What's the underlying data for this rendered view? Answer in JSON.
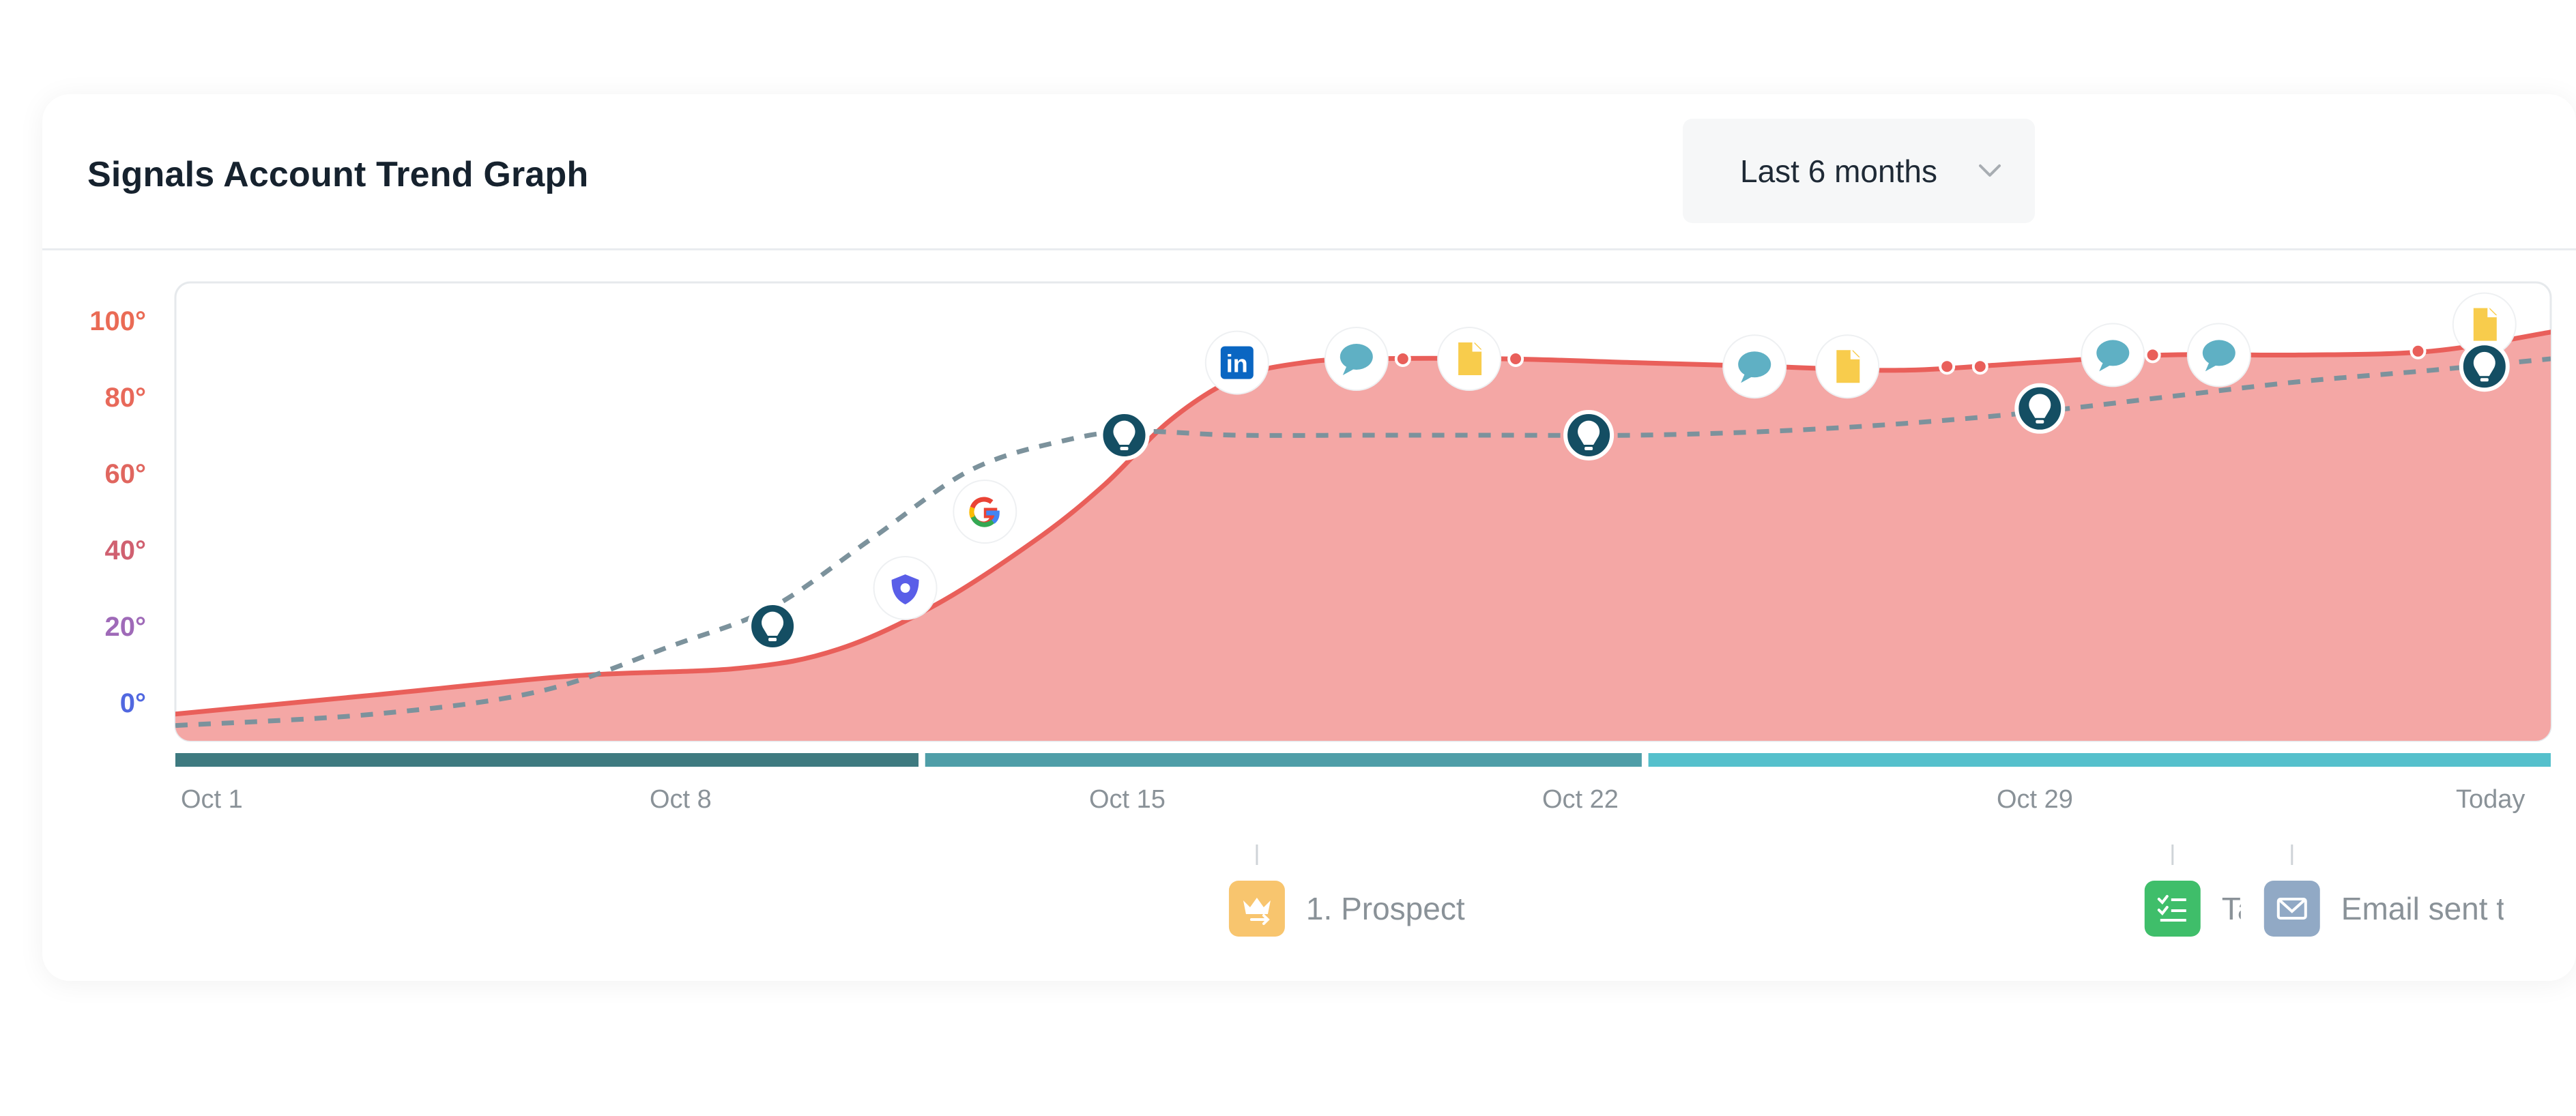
{
  "card": {
    "title": "Signals Account Trend Graph",
    "range_select": {
      "value": "Last 6 months"
    }
  },
  "chart_data": {
    "type": "area",
    "title": "Signals Account Trend Graph",
    "xlabel": "",
    "ylabel": "",
    "x_ticks": [
      "Oct 1",
      "Oct 8",
      "Oct 15",
      "Oct 22",
      "Oct 29",
      "Today"
    ],
    "y_ticks": [
      "0°",
      "20°",
      "40°",
      "60°",
      "80°",
      "100°"
    ],
    "y_tick_colors": [
      "#5168e0",
      "#9f6ab8",
      "#d06070",
      "#e0665f",
      "#e8695a",
      "#ea6b55"
    ],
    "ylim": [
      -10,
      110
    ],
    "xlim": [
      0,
      35.8
    ],
    "grid": false,
    "series": [
      {
        "style": "area-solid",
        "color": "#e95f5a",
        "fill": "#f4a7a5",
        "x": [
          0,
          3,
          6,
          8.5,
          10,
          11.5,
          13,
          14,
          15,
          16,
          17,
          18,
          20,
          22,
          24,
          26,
          28,
          30,
          32,
          34,
          35.8
        ],
        "y": [
          -3,
          2,
          7,
          9,
          14,
          26,
          43,
          57,
          74,
          85,
          89,
          90,
          90,
          89,
          88,
          87,
          89,
          91,
          91,
          92,
          97
        ]
      },
      {
        "style": "dashed",
        "color": "#7c929c",
        "x": [
          0,
          3,
          5.5,
          7.5,
          9,
          10.5,
          12,
          13.5,
          14.5,
          16,
          18,
          20,
          22,
          24,
          26,
          28,
          30,
          32,
          34,
          35.8
        ],
        "y": [
          -6,
          -3,
          3,
          15,
          25,
          43,
          61,
          69,
          71,
          70,
          70,
          70,
          70,
          71,
          73,
          76,
          80,
          84,
          87,
          90
        ]
      }
    ],
    "markers": [
      {
        "icon": "lightbulb-icon",
        "x": 9.0,
        "y": 20
      },
      {
        "icon": "shield-icon",
        "x": 11.0,
        "y": 30
      },
      {
        "icon": "google-icon",
        "x": 12.2,
        "y": 50
      },
      {
        "icon": "lightbulb-icon",
        "x": 14.3,
        "y": 70
      },
      {
        "icon": "linkedin-icon",
        "x": 16.0,
        "y": 89
      },
      {
        "icon": "chat-icon",
        "x": 17.8,
        "y": 90
      },
      {
        "icon": "dot",
        "x": 18.5,
        "y": 90
      },
      {
        "icon": "document-icon",
        "x": 19.5,
        "y": 90
      },
      {
        "icon": "dot",
        "x": 20.2,
        "y": 90
      },
      {
        "icon": "lightbulb-icon",
        "x": 21.3,
        "y": 70
      },
      {
        "icon": "chat-icon",
        "x": 23.8,
        "y": 88
      },
      {
        "icon": "document-icon",
        "x": 25.2,
        "y": 88
      },
      {
        "icon": "dot",
        "x": 26.7,
        "y": 88
      },
      {
        "icon": "dot",
        "x": 27.2,
        "y": 88
      },
      {
        "icon": "lightbulb-icon",
        "x": 28.1,
        "y": 77
      },
      {
        "icon": "chat-icon",
        "x": 29.2,
        "y": 91
      },
      {
        "icon": "dot",
        "x": 29.8,
        "y": 91
      },
      {
        "icon": "chat-icon",
        "x": 30.8,
        "y": 91
      },
      {
        "icon": "dot",
        "x": 33.8,
        "y": 92
      },
      {
        "icon": "document-icon",
        "x": 34.8,
        "y": 99
      },
      {
        "icon": "lightbulb-icon",
        "x": 34.8,
        "y": 88
      }
    ],
    "stage_bars": [
      {
        "from": 0,
        "to": 11.2,
        "color": "#3e7a80"
      },
      {
        "from": 11.3,
        "to": 22.1,
        "color": "#4f9ea8"
      },
      {
        "from": 22.2,
        "to": 35.8,
        "color": "#55c0cc"
      }
    ],
    "events": [
      {
        "x": 16.3,
        "label": "1. Prospect",
        "icon": "crown-arrow-icon",
        "color": "#f8c56e"
      },
      {
        "x": 30.1,
        "label": "Ta",
        "icon": "checklist-icon",
        "color": "#3fbe6a"
      },
      {
        "x": 31.9,
        "label": "Email sent t",
        "icon": "mail-icon",
        "color": "#91a9c5"
      }
    ]
  }
}
